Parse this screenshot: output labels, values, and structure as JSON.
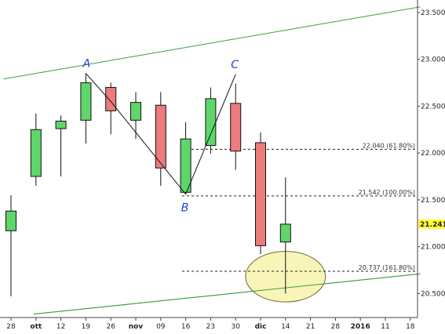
{
  "colors": {
    "bull": "#5ed66c",
    "bear": "#ec7b7b",
    "channel": "#3c9e3c",
    "zigzag": "#111111",
    "wave_label": "#1f3fd1",
    "ellipse_fill": "#f9f5b8",
    "ellipse_stroke": "#6b6b35",
    "price_tag_bg": "#ffff33"
  },
  "chart_data": {
    "type": "candlestick",
    "title": "",
    "xlabel": "",
    "ylabel": "",
    "ylim": [
      20.26,
      23.6
    ],
    "y_ticks": [
      "20.500",
      "21.000",
      "21.500",
      "22.000",
      "22.500",
      "23.000",
      "23.500"
    ],
    "x_ticks": [
      {
        "label": "28",
        "bold": false
      },
      {
        "label": "ott",
        "bold": true
      },
      {
        "label": "12",
        "bold": false
      },
      {
        "label": "19",
        "bold": false
      },
      {
        "label": "26",
        "bold": false
      },
      {
        "label": "nov",
        "bold": true
      },
      {
        "label": "09",
        "bold": false
      },
      {
        "label": "16",
        "bold": false
      },
      {
        "label": "23",
        "bold": false
      },
      {
        "label": "30",
        "bold": false
      },
      {
        "label": "dic",
        "bold": true
      },
      {
        "label": "14",
        "bold": false
      },
      {
        "label": "21",
        "bold": false
      },
      {
        "label": "28",
        "bold": false
      },
      {
        "label": "2016",
        "bold": true
      },
      {
        "label": "11",
        "bold": false
      },
      {
        "label": "18",
        "bold": false
      }
    ],
    "candles": [
      {
        "x": "28",
        "open": 21.17,
        "high": 21.55,
        "low": 20.47,
        "close": 21.38
      },
      {
        "x": "ott",
        "open": 21.75,
        "high": 22.42,
        "low": 21.65,
        "close": 22.25
      },
      {
        "x": "12",
        "open": 22.26,
        "high": 22.4,
        "low": 21.75,
        "close": 22.34
      },
      {
        "x": "19",
        "open": 22.35,
        "high": 22.85,
        "low": 22.1,
        "close": 22.75
      },
      {
        "x": "26",
        "open": 22.7,
        "high": 22.75,
        "low": 22.2,
        "close": 22.45
      },
      {
        "x": "nov",
        "open": 22.35,
        "high": 22.65,
        "low": 22.15,
        "close": 22.54
      },
      {
        "x": "09",
        "open": 22.51,
        "high": 22.65,
        "low": 21.65,
        "close": 21.84
      },
      {
        "x": "16",
        "open": 21.58,
        "high": 22.33,
        "low": 21.56,
        "close": 22.15
      },
      {
        "x": "23",
        "open": 22.08,
        "high": 22.7,
        "low": 21.99,
        "close": 22.58
      },
      {
        "x": "30",
        "open": 22.53,
        "high": 22.74,
        "low": 21.82,
        "close": 22.02
      },
      {
        "x": "dic",
        "open": 22.11,
        "high": 22.22,
        "low": 20.92,
        "close": 21.01
      },
      {
        "x": "14",
        "open": 21.05,
        "high": 21.74,
        "low": 20.5,
        "close": 21.24
      }
    ],
    "fib_levels": [
      {
        "value": 22.04,
        "label": "22.040 (61.80%)"
      },
      {
        "value": 21.542,
        "label": "21.542 (100.00%)"
      },
      {
        "value": 20.737,
        "label": "20.737 (161.80%)"
      }
    ],
    "channel_lines": [
      {
        "name": "upper",
        "from": {
          "x": -0.3,
          "y": 22.79
        },
        "to": {
          "x": 16.4,
          "y": 23.56
        }
      },
      {
        "name": "lower",
        "from": {
          "x": 0.9,
          "y": 20.28
        },
        "to": {
          "x": 16.4,
          "y": 20.71
        }
      }
    ],
    "zigzag": [
      {
        "label": "A",
        "x": "19",
        "y": 22.85
      },
      {
        "label": "",
        "x": "26",
        "y": 22.55
      },
      {
        "label": "B",
        "x": "16",
        "y": 21.56
      },
      {
        "label": "C",
        "x": "30",
        "y": 22.84
      }
    ],
    "target_ellipse": {
      "x_center": 11,
      "y_center": 20.68,
      "x_radius": 1.6,
      "y_radius": 0.27
    },
    "last_price": "21.241"
  }
}
